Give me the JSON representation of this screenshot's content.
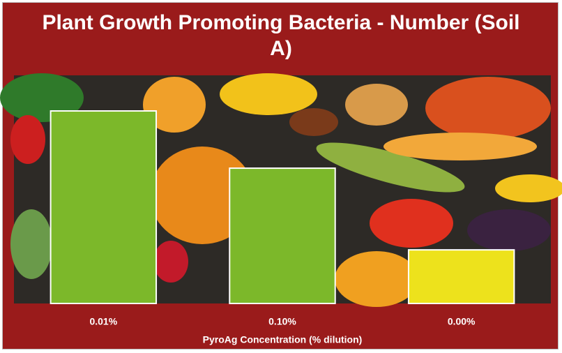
{
  "chart_data": {
    "type": "bar",
    "title": "Plant Growth Promoting Bacteria - Number (Soil A)",
    "x_label": "PyroAg Concentration (% dilution)",
    "categories": [
      "0.01%",
      "0.10%",
      "0.00%"
    ],
    "values": [
      84.4,
      59.3,
      23.5
    ],
    "colors": [
      "#7cb82a",
      "#7cb82a",
      "#ede21c"
    ],
    "ylim": [
      0,
      100
    ]
  }
}
